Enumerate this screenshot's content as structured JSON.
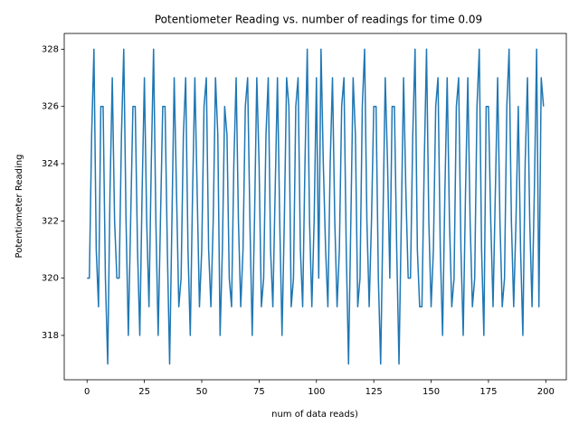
{
  "chart_data": {
    "type": "line",
    "title": "Potentiometer Reading vs. number of readings for time 0.09",
    "xlabel": "num of data reads)",
    "ylabel": "Potentiometer Reading",
    "color": "#1f77b4",
    "x": [
      0,
      1,
      2,
      3,
      4,
      5,
      6,
      7,
      8,
      9,
      10,
      11,
      12,
      13,
      14,
      15,
      16,
      17,
      18,
      19,
      20,
      21,
      22,
      23,
      24,
      25,
      26,
      27,
      28,
      29,
      30,
      31,
      32,
      33,
      34,
      35,
      36,
      37,
      38,
      39,
      40,
      41,
      42,
      43,
      44,
      45,
      46,
      47,
      48,
      49,
      50,
      51,
      52,
      53,
      54,
      55,
      56,
      57,
      58,
      59,
      60,
      61,
      62,
      63,
      64,
      65,
      66,
      67,
      68,
      69,
      70,
      71,
      72,
      73,
      74,
      75,
      76,
      77,
      78,
      79,
      80,
      81,
      82,
      83,
      84,
      85,
      86,
      87,
      88,
      89,
      90,
      91,
      92,
      93,
      94,
      95,
      96,
      97,
      98,
      99,
      100,
      101,
      102,
      103,
      104,
      105,
      106,
      107,
      108,
      109,
      110,
      111,
      112,
      113,
      114,
      115,
      116,
      117,
      118,
      119,
      120,
      121,
      122,
      123,
      124,
      125,
      126,
      127,
      128,
      129,
      130,
      131,
      132,
      133,
      134,
      135,
      136,
      137,
      138,
      139,
      140,
      141,
      142,
      143,
      144,
      145,
      146,
      147,
      148,
      149,
      150,
      151,
      152,
      153,
      154,
      155,
      156,
      157,
      158,
      159,
      160,
      161,
      162,
      163,
      164,
      165,
      166,
      167,
      168,
      169,
      170,
      171,
      172,
      173,
      174,
      175,
      176,
      177,
      178,
      179,
      180,
      181,
      182,
      183,
      184,
      185,
      186,
      187,
      188,
      189,
      190,
      191,
      192,
      193,
      194,
      195,
      196,
      197,
      198,
      199
    ],
    "values": [
      320,
      320,
      325,
      328,
      321,
      319,
      326,
      326,
      320,
      317,
      323,
      327,
      322,
      320,
      320,
      325,
      328,
      322,
      318,
      322,
      326,
      326,
      321,
      318,
      323,
      327,
      322,
      319,
      324,
      328,
      322,
      318,
      322,
      326,
      326,
      321,
      317,
      322,
      327,
      323,
      319,
      320,
      325,
      327,
      321,
      318,
      323,
      327,
      323,
      319,
      321,
      326,
      327,
      321,
      319,
      322,
      327,
      325,
      318,
      321,
      326,
      325,
      320,
      319,
      324,
      327,
      322,
      319,
      321,
      326,
      327,
      322,
      318,
      322,
      327,
      324,
      319,
      320,
      325,
      327,
      321,
      319,
      323,
      327,
      322,
      318,
      322,
      327,
      326,
      319,
      320,
      326,
      327,
      321,
      319,
      324,
      328,
      322,
      319,
      322,
      327,
      320,
      328,
      324,
      321,
      319,
      324,
      327,
      322,
      319,
      321,
      326,
      327,
      321,
      317,
      322,
      327,
      325,
      319,
      320,
      326,
      328,
      322,
      319,
      322,
      326,
      326,
      320,
      317,
      322,
      327,
      324,
      320,
      326,
      326,
      321,
      317,
      322,
      327,
      323,
      320,
      320,
      325,
      328,
      321,
      319,
      319,
      324,
      328,
      322,
      319,
      321,
      326,
      327,
      321,
      318,
      323,
      327,
      322,
      319,
      320,
      326,
      327,
      321,
      318,
      323,
      327,
      322,
      319,
      320,
      326,
      328,
      321,
      318,
      326,
      326,
      322,
      319,
      323,
      327,
      322,
      319,
      320,
      326,
      328,
      322,
      319,
      322,
      326,
      321,
      318,
      324,
      327,
      322,
      319,
      323,
      328,
      319,
      327,
      326
    ],
    "xlim": [
      -9.95,
      208.95
    ],
    "ylim": [
      316.45,
      328.55
    ],
    "xticks": [
      0,
      25,
      50,
      75,
      100,
      125,
      150,
      175,
      200
    ],
    "yticks": [
      318,
      320,
      322,
      324,
      326,
      328
    ]
  }
}
